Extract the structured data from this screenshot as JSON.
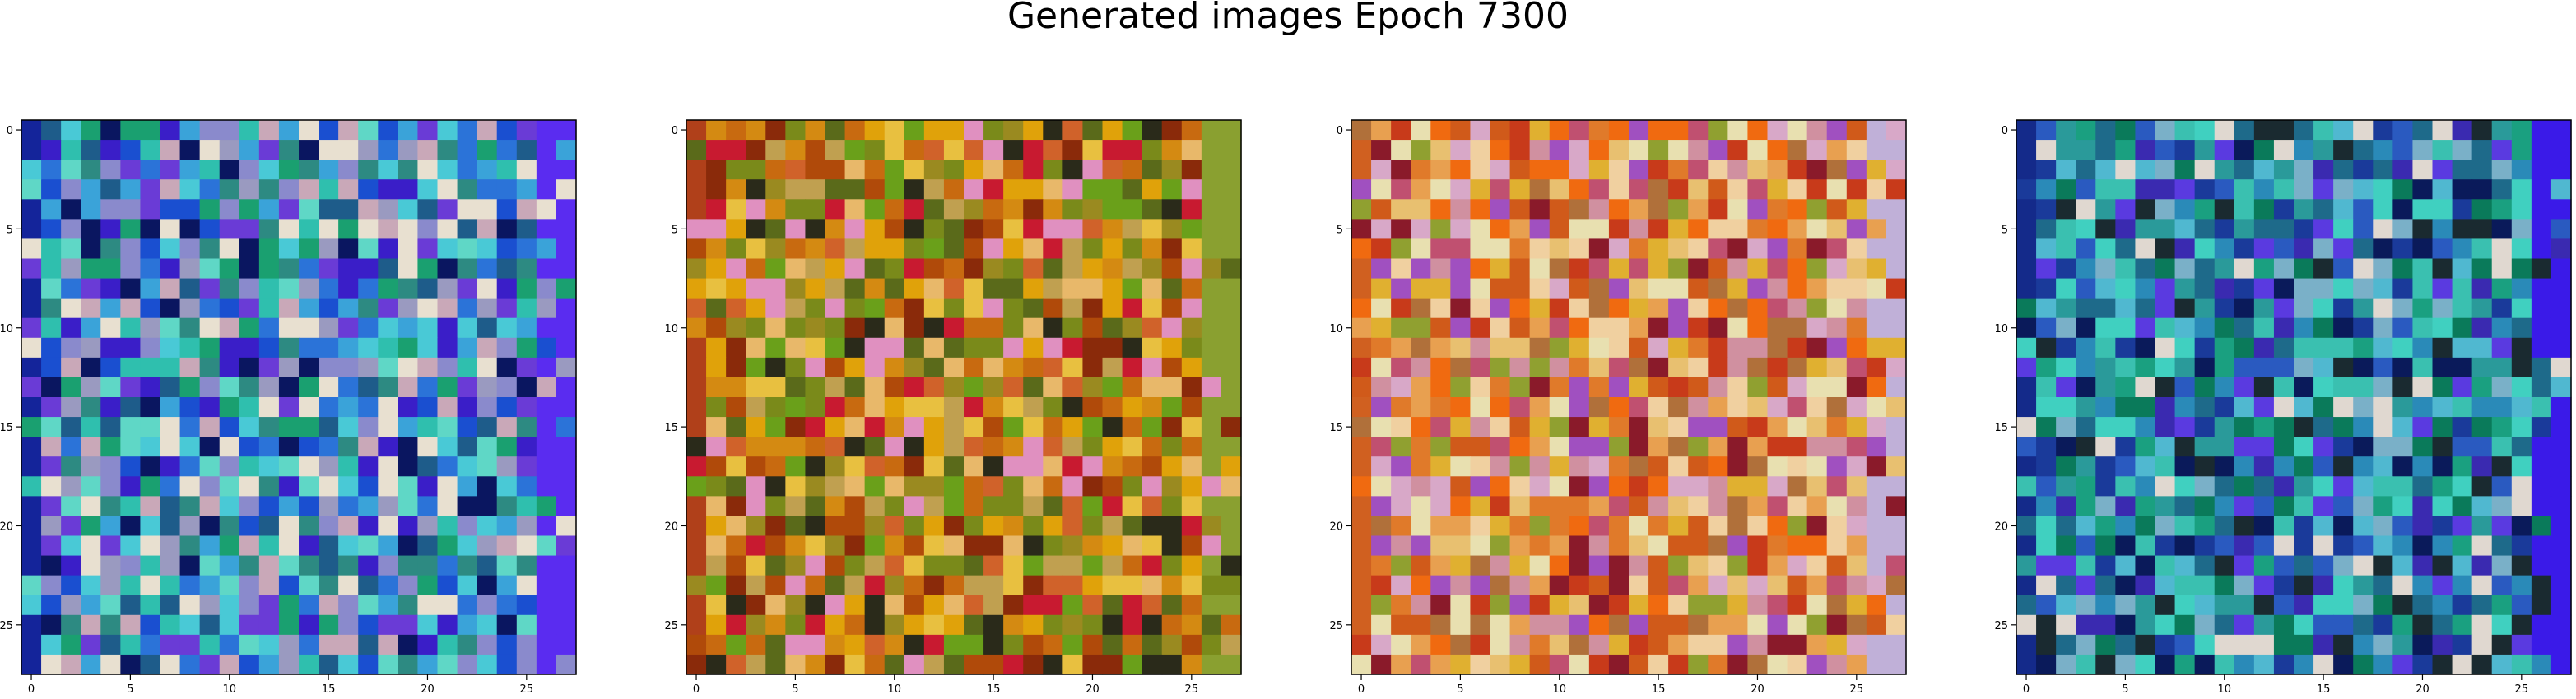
{
  "figure": {
    "title": "Generated images Epoch 7300"
  },
  "chart_data": [
    {
      "type": "heatmap",
      "grid_size": [
        28,
        28
      ],
      "xlim": [
        -0.5,
        27.5
      ],
      "ylim": [
        27.5,
        -0.5
      ],
      "xticks": [
        0,
        5,
        10,
        15,
        20,
        25
      ],
      "yticks": [
        0,
        5,
        10,
        15,
        20,
        25
      ],
      "xtick_labels": [
        "0",
        "5",
        "10",
        "15",
        "20",
        "25"
      ],
      "ytick_labels": [
        "0",
        "5",
        "10",
        "15",
        "20",
        "25"
      ],
      "xlabel": "",
      "ylabel": "",
      "palette": [
        "#1a4fd0",
        "#2b73d8",
        "#3aa3d9",
        "#49c9d6",
        "#5fd7c6",
        "#2d8a82",
        "#1e5c8a",
        "#6a3bd6",
        "#3a1ec8",
        "#0a1660",
        "#9a9ac0",
        "#c9a8b8",
        "#e8e0d0",
        "#2fbfae",
        "#1aa070",
        "#8a8acc"
      ],
      "border_colors": {
        "right": "#5a2cf0",
        "left": "#14249a"
      }
    },
    {
      "type": "heatmap",
      "grid_size": [
        28,
        28
      ],
      "xlim": [
        -0.5,
        27.5
      ],
      "ylim": [
        27.5,
        -0.5
      ],
      "xticks": [
        0,
        5,
        10,
        15,
        20,
        25
      ],
      "yticks": [
        0,
        5,
        10,
        15,
        20,
        25
      ],
      "xtick_labels": [
        "0",
        "5",
        "10",
        "15",
        "20",
        "25"
      ],
      "ytick_labels": [
        "0",
        "5",
        "10",
        "15",
        "20",
        "25"
      ],
      "xlabel": "",
      "ylabel": "",
      "palette": [
        "#d48a12",
        "#e0a20a",
        "#c86a10",
        "#b04a0a",
        "#e8c040",
        "#9a8a20",
        "#7a8a1a",
        "#c0a050",
        "#d0622a",
        "#e8b86a",
        "#5a6a1a",
        "#8a2a0a",
        "#2a2a1a",
        "#e090c0",
        "#6aa01a",
        "#c81a30"
      ],
      "border_colors": {
        "right": "#8aa030",
        "left": "#b0401a"
      }
    },
    {
      "type": "heatmap",
      "grid_size": [
        28,
        28
      ],
      "xlim": [
        -0.5,
        27.5
      ],
      "ylim": [
        27.5,
        -0.5
      ],
      "xticks": [
        0,
        5,
        10,
        15,
        20,
        25
      ],
      "yticks": [
        0,
        5,
        10,
        15,
        20,
        25
      ],
      "xtick_labels": [
        "0",
        "5",
        "10",
        "15",
        "20",
        "25"
      ],
      "ytick_labels": [
        "0",
        "5",
        "10",
        "15",
        "20",
        "25"
      ],
      "xlabel": "",
      "ylabel": "",
      "palette": [
        "#e07a2a",
        "#e8a050",
        "#d05a1a",
        "#c83a1a",
        "#e8c070",
        "#f0d0a0",
        "#d090a0",
        "#c05070",
        "#8a1a2a",
        "#e0b030",
        "#b0703a",
        "#d8a8c8",
        "#a050c0",
        "#e8e0b0",
        "#90a030",
        "#f06a10"
      ],
      "border_colors": {
        "right": "#c0b0d8",
        "left": "#d06020"
      }
    },
    {
      "type": "heatmap",
      "grid_size": [
        28,
        28
      ],
      "xlim": [
        -0.5,
        27.5
      ],
      "ylim": [
        27.5,
        -0.5
      ],
      "xticks": [
        0,
        5,
        10,
        15,
        20,
        25
      ],
      "yticks": [
        0,
        5,
        10,
        15,
        20,
        25
      ],
      "xtick_labels": [
        "0",
        "5",
        "10",
        "15",
        "20",
        "25"
      ],
      "ytick_labels": [
        "0",
        "5",
        "10",
        "15",
        "20",
        "25"
      ],
      "xlabel": "",
      "ylabel": "",
      "palette": [
        "#1e6a8a",
        "#2a9a9a",
        "#3ac0b0",
        "#1a3a9a",
        "#2a5ac0",
        "#40d0c0",
        "#1aa080",
        "#0a7a5a",
        "#3a2ab0",
        "#0a1a5a",
        "#50b8d0",
        "#2a8ab8",
        "#7ab0c8",
        "#e0d8d0",
        "#1a2a30",
        "#5a3ae0"
      ],
      "border_colors": {
        "right": "#3a1ae8",
        "left": "#142a8a"
      }
    }
  ]
}
